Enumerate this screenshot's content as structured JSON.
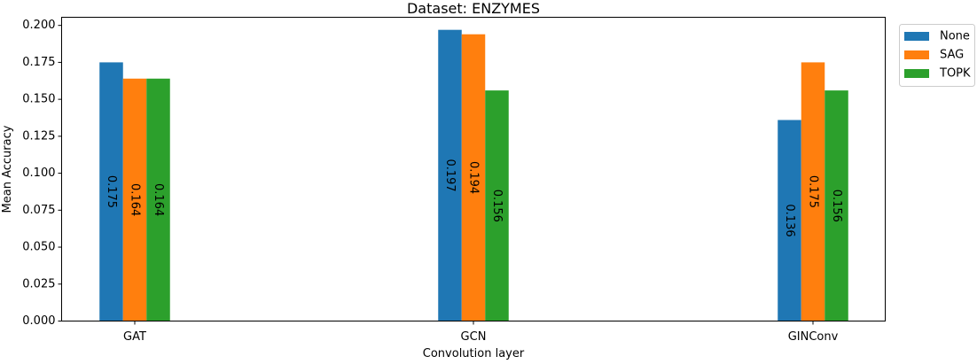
{
  "chart_data": {
    "type": "bar",
    "title": "Dataset: ENZYMES",
    "xlabel": "Convolution layer",
    "ylabel": "Mean Accuracy",
    "categories": [
      "GAT",
      "GCN",
      "GINConv"
    ],
    "series": [
      {
        "name": "None",
        "color": "#1f77b4",
        "values": [
          0.175,
          0.197,
          0.136
        ],
        "labels": [
          "0.175",
          "0.197",
          "0.136"
        ]
      },
      {
        "name": "SAG",
        "color": "#ff7f0e",
        "values": [
          0.164,
          0.194,
          0.175
        ],
        "labels": [
          "0.164",
          "0.194",
          "0.175"
        ]
      },
      {
        "name": "TOPK",
        "color": "#2ca02c",
        "values": [
          0.164,
          0.156,
          0.156
        ],
        "labels": [
          "0.164",
          "0.156",
          "0.156"
        ]
      }
    ],
    "ylim": [
      0,
      0.2055
    ],
    "yticks": [
      "0.000",
      "0.025",
      "0.050",
      "0.075",
      "0.100",
      "0.125",
      "0.150",
      "0.175",
      "0.200"
    ],
    "legend_position": "outside-top-right",
    "grid": false
  }
}
